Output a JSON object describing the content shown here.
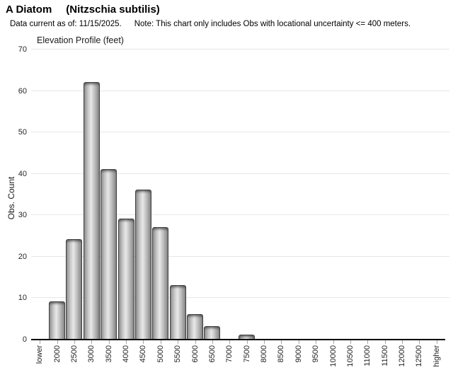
{
  "header": {
    "title_common": "A Diatom",
    "title_scientific": "(Nitzschia subtilis)",
    "note_data_current": "Data current as of: 11/15/2025.",
    "note_filter": "Note: This chart only includes Obs with locational uncertainty <= 400 meters."
  },
  "chart_data": {
    "type": "bar",
    "title": "Elevation Profile (feet)",
    "xlabel": "",
    "ylabel": "Obs. Count",
    "categories": [
      "lower",
      "2000",
      "2500",
      "3000",
      "3500",
      "4000",
      "4500",
      "5000",
      "5500",
      "6000",
      "6500",
      "7000",
      "7500",
      "8000",
      "8500",
      "9000",
      "9500",
      "10000",
      "10500",
      "11000",
      "11500",
      "12000",
      "12500",
      "higher"
    ],
    "values": [
      0,
      9,
      24,
      62,
      41,
      29,
      36,
      27,
      13,
      6,
      3,
      0,
      1,
      0,
      0,
      0,
      0,
      0,
      0,
      0,
      0,
      0,
      0,
      0
    ],
    "ylim": [
      0,
      70
    ],
    "ytick_interval": 10,
    "grid": true,
    "legend": "none",
    "x_labels_rotated_degrees": -90
  },
  "colors": {
    "bar_light": "#e8e8e8",
    "bar_dark": "#8e8e8e",
    "bar_border": "#404040",
    "gridline": "#e7e7e7",
    "axis": "#000000",
    "text": "#000000"
  }
}
